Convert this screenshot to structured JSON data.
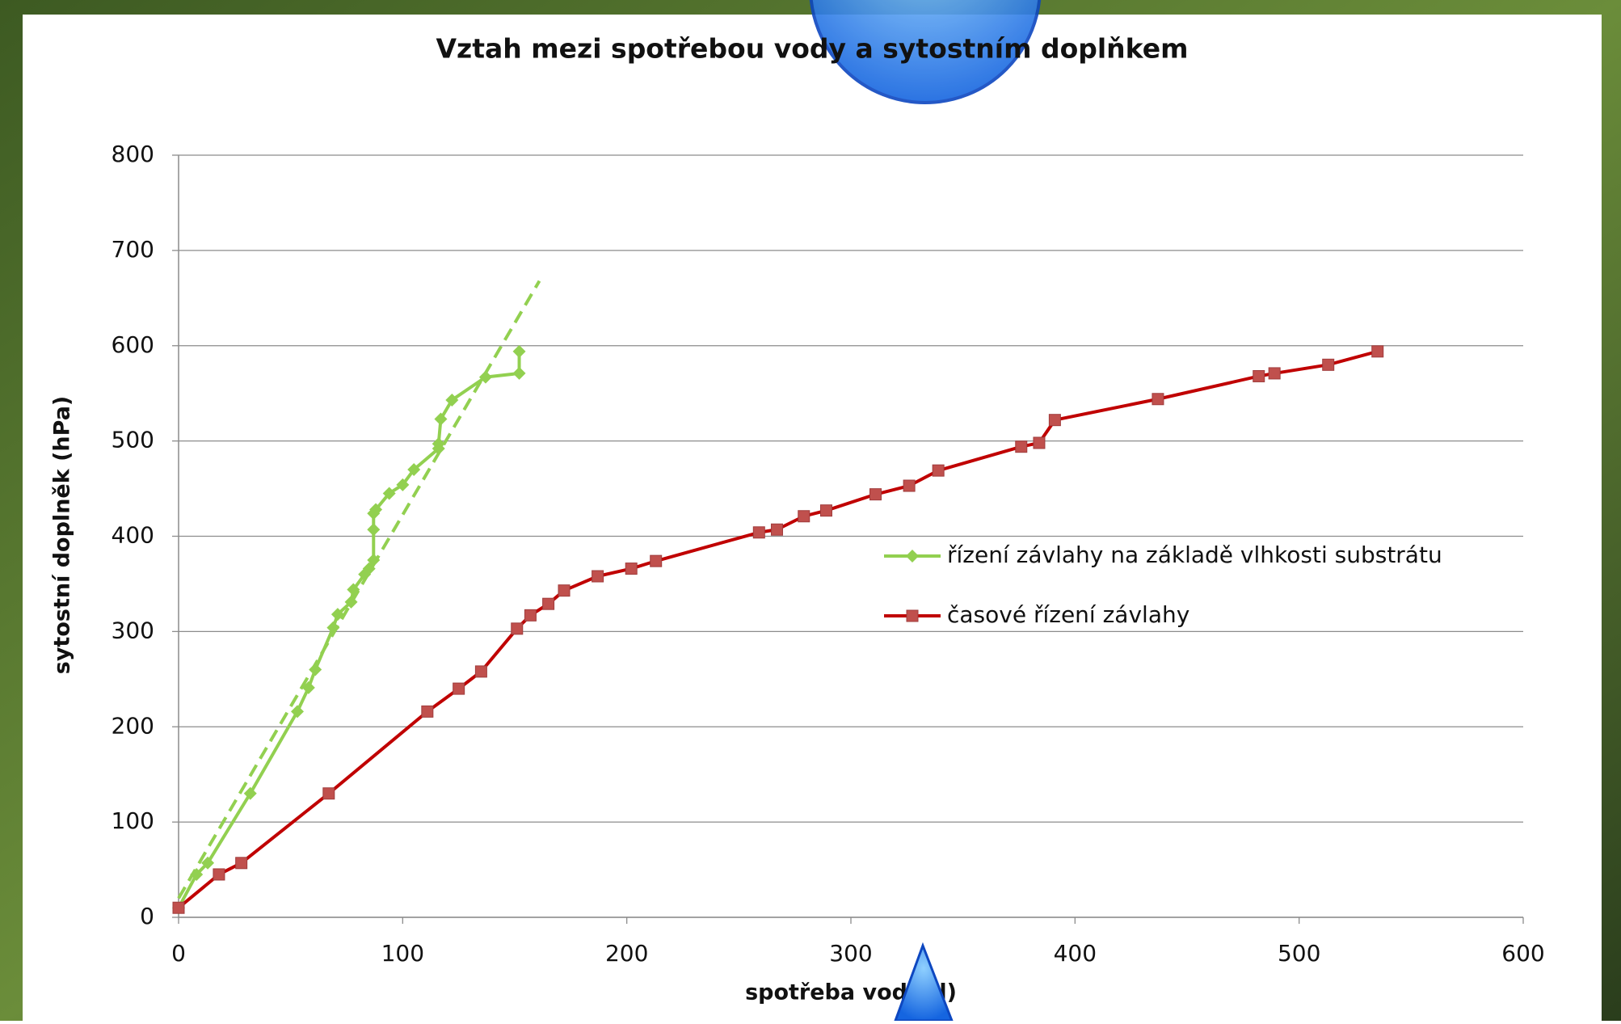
{
  "chart_data": {
    "type": "line",
    "title": "Vztah mezi spotřebou vody a sytostním doplňkem",
    "x_label": "spotřeba vody (l)",
    "y_label": "sytostní doplněk (hPa)",
    "xlim": [
      0,
      600
    ],
    "xticks": [
      0,
      100,
      200,
      300,
      400,
      500,
      600
    ],
    "ylim": [
      0,
      800
    ],
    "yticks": [
      0,
      100,
      200,
      300,
      400,
      500,
      600,
      700,
      800
    ],
    "grid": true,
    "series": [
      {
        "name": "řízení závlahy na základě vlhkosti substrátu",
        "color": "#92d050",
        "marker": "diamond",
        "x": [
          0,
          8,
          13,
          32,
          53,
          58,
          61,
          69,
          71,
          77,
          78,
          83,
          85,
          87,
          87,
          87,
          88,
          94,
          100,
          105,
          116,
          116,
          117,
          122,
          137,
          152,
          152
        ],
        "values": [
          10,
          45,
          57,
          130,
          216,
          241,
          260,
          304,
          318,
          331,
          344,
          360,
          366,
          375,
          407,
          424,
          428,
          445,
          454,
          470,
          492,
          497,
          523,
          543,
          567,
          571,
          594
        ]
      },
      {
        "name": "časové řízení závlahy",
        "color": "#c00000",
        "marker": "square",
        "x": [
          0,
          18,
          28,
          67,
          111,
          125,
          135,
          151,
          157,
          165,
          172,
          187,
          202,
          213,
          259,
          267,
          279,
          289,
          311,
          326,
          339,
          376,
          384,
          391,
          437,
          482,
          489,
          513,
          535
        ],
        "values": [
          10,
          45,
          57,
          130,
          216,
          240,
          258,
          303,
          317,
          329,
          343,
          358,
          366,
          374,
          404,
          407,
          421,
          427,
          444,
          453,
          469,
          494,
          498,
          522,
          544,
          568,
          571,
          580,
          594
        ]
      }
    ],
    "trendline": {
      "color": "#92d050",
      "x": [
        0,
        161
      ],
      "values": [
        20,
        668
      ]
    }
  }
}
